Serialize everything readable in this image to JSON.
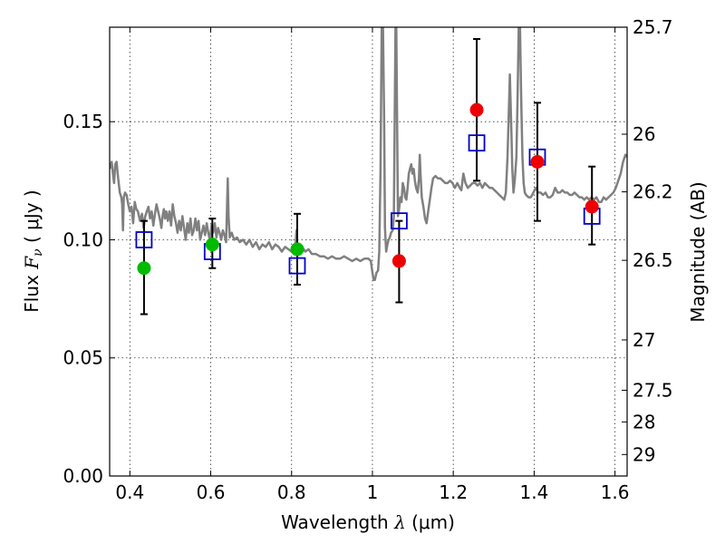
{
  "chart_data": {
    "type": "scatter",
    "xlabel_prefix": "Wavelength  ",
    "xlabel_math": "λ",
    "xlabel_unit": " (μm)",
    "ylabel_prefix": "Flux  ",
    "ylabel_math": "F",
    "ylabel_sub": "ν",
    "ylabel_unit": "  ( μJy )",
    "y2label": "Magnitude (AB)",
    "xlim": [
      0.35,
      1.63
    ],
    "ylim": [
      0.0,
      0.19
    ],
    "x_ticks": [
      0.4,
      0.6,
      0.8,
      1.0,
      1.2,
      1.4,
      1.6
    ],
    "x_tick_labels": [
      "0.4",
      "0.6",
      "0.8",
      "1",
      "1.2",
      "1.4",
      "1.6"
    ],
    "y_ticks": [
      0.0,
      0.05,
      0.1,
      0.15
    ],
    "y_tick_labels": [
      "0.00",
      "0.05",
      "0.10",
      "0.15"
    ],
    "y2_ticks": [
      {
        "label": "25.7",
        "flux": 0.19
      },
      {
        "label": "26",
        "flux": 0.1447
      },
      {
        "label": "26.2",
        "flux": 0.1203
      },
      {
        "label": "26.5",
        "flux": 0.0913
      },
      {
        "label": "27",
        "flux": 0.0576
      },
      {
        "label": "27.5",
        "flux": 0.0363
      },
      {
        "label": "28",
        "flux": 0.0229
      },
      {
        "label": "29",
        "flux": 0.0091
      }
    ],
    "model_spectrum": {
      "name": "model SED",
      "color": "#808080",
      "points": [
        [
          0.35,
          0.13
        ],
        [
          0.355,
          0.133
        ],
        [
          0.358,
          0.128
        ],
        [
          0.361,
          0.124
        ],
        [
          0.364,
          0.132
        ],
        [
          0.367,
          0.133
        ],
        [
          0.371,
          0.126
        ],
        [
          0.375,
          0.12
        ],
        [
          0.379,
          0.118
        ],
        [
          0.381,
          0.115
        ],
        [
          0.383,
          0.104
        ],
        [
          0.385,
          0.118
        ],
        [
          0.388,
          0.12
        ],
        [
          0.392,
          0.119
        ],
        [
          0.396,
          0.115
        ],
        [
          0.4,
          0.112
        ],
        [
          0.404,
          0.114
        ],
        [
          0.408,
          0.107
        ],
        [
          0.412,
          0.116
        ],
        [
          0.416,
          0.113
        ],
        [
          0.42,
          0.112
        ],
        [
          0.425,
          0.108
        ],
        [
          0.43,
          0.111
        ],
        [
          0.434,
          0.105
        ],
        [
          0.438,
          0.11
        ],
        [
          0.442,
          0.112
        ],
        [
          0.446,
          0.114
        ],
        [
          0.45,
          0.109
        ],
        [
          0.454,
          0.112
        ],
        [
          0.458,
          0.106
        ],
        [
          0.462,
          0.111
        ],
        [
          0.466,
          0.115
        ],
        [
          0.47,
          0.112
        ],
        [
          0.474,
          0.109
        ],
        [
          0.478,
          0.105
        ],
        [
          0.481,
          0.11
        ],
        [
          0.484,
          0.113
        ],
        [
          0.487,
          0.109
        ],
        [
          0.49,
          0.112
        ],
        [
          0.494,
          0.108
        ],
        [
          0.498,
          0.112
        ],
        [
          0.502,
          0.106
        ],
        [
          0.506,
          0.115
        ],
        [
          0.51,
          0.11
        ],
        [
          0.514,
          0.107
        ],
        [
          0.518,
          0.103
        ],
        [
          0.522,
          0.108
        ],
        [
          0.526,
          0.104
        ],
        [
          0.53,
          0.11
        ],
        [
          0.534,
          0.105
        ],
        [
          0.538,
          0.1
        ],
        [
          0.542,
          0.107
        ],
        [
          0.546,
          0.103
        ],
        [
          0.55,
          0.109
        ],
        [
          0.554,
          0.102
        ],
        [
          0.558,
          0.104
        ],
        [
          0.562,
          0.109
        ],
        [
          0.566,
          0.104
        ],
        [
          0.57,
          0.108
        ],
        [
          0.574,
          0.1
        ],
        [
          0.578,
          0.103
        ],
        [
          0.582,
          0.106
        ],
        [
          0.586,
          0.102
        ],
        [
          0.59,
          0.107
        ],
        [
          0.594,
          0.103
        ],
        [
          0.598,
          0.1
        ],
        [
          0.602,
          0.106
        ],
        [
          0.606,
          0.103
        ],
        [
          0.61,
          0.107
        ],
        [
          0.614,
          0.101
        ],
        [
          0.618,
          0.105
        ],
        [
          0.622,
          0.103
        ],
        [
          0.626,
          0.1
        ],
        [
          0.63,
          0.104
        ],
        [
          0.634,
          0.102
        ],
        [
          0.638,
          0.099
        ],
        [
          0.64,
          0.112
        ],
        [
          0.642,
          0.126
        ],
        [
          0.644,
          0.11
        ],
        [
          0.647,
          0.101
        ],
        [
          0.652,
          0.103
        ],
        [
          0.658,
          0.1
        ],
        [
          0.665,
          0.101
        ],
        [
          0.672,
          0.099
        ],
        [
          0.68,
          0.1
        ],
        [
          0.688,
          0.098
        ],
        [
          0.696,
          0.1
        ],
        [
          0.704,
          0.097
        ],
        [
          0.712,
          0.099
        ],
        [
          0.72,
          0.096
        ],
        [
          0.728,
          0.098
        ],
        [
          0.736,
          0.097
        ],
        [
          0.744,
          0.099
        ],
        [
          0.752,
          0.096
        ],
        [
          0.76,
          0.098
        ],
        [
          0.768,
          0.097
        ],
        [
          0.776,
          0.095
        ],
        [
          0.784,
          0.097
        ],
        [
          0.792,
          0.096
        ],
        [
          0.8,
          0.095
        ],
        [
          0.806,
          0.097
        ],
        [
          0.81,
          0.098
        ],
        [
          0.812,
          0.104
        ],
        [
          0.814,
          0.097
        ],
        [
          0.818,
          0.096
        ],
        [
          0.826,
          0.097
        ],
        [
          0.834,
          0.095
        ],
        [
          0.842,
          0.096
        ],
        [
          0.85,
          0.094
        ],
        [
          0.86,
          0.094
        ],
        [
          0.87,
          0.093
        ],
        [
          0.88,
          0.093
        ],
        [
          0.89,
          0.092
        ],
        [
          0.9,
          0.093
        ],
        [
          0.91,
          0.092
        ],
        [
          0.92,
          0.092
        ],
        [
          0.93,
          0.093
        ],
        [
          0.94,
          0.092
        ],
        [
          0.95,
          0.091
        ],
        [
          0.96,
          0.092
        ],
        [
          0.97,
          0.091
        ],
        [
          0.98,
          0.092
        ],
        [
          0.99,
          0.092
        ],
        [
          0.996,
          0.091
        ],
        [
          1.0,
          0.086
        ],
        [
          1.003,
          0.083
        ],
        [
          1.006,
          0.083
        ],
        [
          1.01,
          0.086
        ],
        [
          1.014,
          0.087
        ],
        [
          1.017,
          0.095
        ],
        [
          1.02,
          0.13
        ],
        [
          1.023,
          0.19
        ],
        [
          1.026,
          0.19
        ],
        [
          1.029,
          0.15
        ],
        [
          1.031,
          0.105
        ],
        [
          1.034,
          0.095
        ],
        [
          1.037,
          0.098
        ],
        [
          1.04,
          0.1
        ],
        [
          1.043,
          0.101
        ],
        [
          1.046,
          0.103
        ],
        [
          1.05,
          0.104
        ],
        [
          1.053,
          0.11
        ],
        [
          1.055,
          0.15
        ],
        [
          1.057,
          0.19
        ],
        [
          1.059,
          0.19
        ],
        [
          1.061,
          0.15
        ],
        [
          1.063,
          0.11
        ],
        [
          1.066,
          0.113
        ],
        [
          1.069,
          0.118
        ],
        [
          1.072,
          0.116
        ],
        [
          1.075,
          0.124
        ],
        [
          1.078,
          0.122
        ],
        [
          1.081,
          0.118
        ],
        [
          1.084,
          0.117
        ],
        [
          1.087,
          0.122
        ],
        [
          1.09,
          0.128
        ],
        [
          1.093,
          0.13
        ],
        [
          1.096,
          0.132
        ],
        [
          1.099,
          0.128
        ],
        [
          1.102,
          0.13
        ],
        [
          1.105,
          0.125
        ],
        [
          1.108,
          0.122
        ],
        [
          1.112,
          0.12
        ],
        [
          1.115,
          0.126
        ],
        [
          1.117,
          0.136
        ],
        [
          1.119,
          0.128
        ],
        [
          1.122,
          0.118
        ],
        [
          1.126,
          0.114
        ],
        [
          1.13,
          0.109
        ],
        [
          1.134,
          0.107
        ],
        [
          1.138,
          0.112
        ],
        [
          1.142,
          0.117
        ],
        [
          1.146,
          0.122
        ],
        [
          1.15,
          0.126
        ],
        [
          1.156,
          0.127
        ],
        [
          1.162,
          0.126
        ],
        [
          1.168,
          0.126
        ],
        [
          1.174,
          0.125
        ],
        [
          1.18,
          0.124
        ],
        [
          1.186,
          0.124
        ],
        [
          1.192,
          0.125
        ],
        [
          1.198,
          0.124
        ],
        [
          1.204,
          0.122
        ],
        [
          1.21,
          0.124
        ],
        [
          1.216,
          0.122
        ],
        [
          1.22,
          0.121
        ],
        [
          1.225,
          0.128
        ],
        [
          1.23,
          0.124
        ],
        [
          1.236,
          0.122
        ],
        [
          1.242,
          0.123
        ],
        [
          1.248,
          0.124
        ],
        [
          1.254,
          0.124
        ],
        [
          1.26,
          0.123
        ],
        [
          1.266,
          0.124
        ],
        [
          1.272,
          0.122
        ],
        [
          1.278,
          0.124
        ],
        [
          1.284,
          0.123
        ],
        [
          1.29,
          0.122
        ],
        [
          1.296,
          0.122
        ],
        [
          1.302,
          0.121
        ],
        [
          1.308,
          0.12
        ],
        [
          1.314,
          0.119
        ],
        [
          1.32,
          0.118
        ],
        [
          1.326,
          0.117
        ],
        [
          1.33,
          0.12
        ],
        [
          1.334,
          0.135
        ],
        [
          1.337,
          0.152
        ],
        [
          1.34,
          0.17
        ],
        [
          1.343,
          0.15
        ],
        [
          1.346,
          0.13
        ],
        [
          1.349,
          0.12
        ],
        [
          1.352,
          0.125
        ],
        [
          1.356,
          0.135
        ],
        [
          1.359,
          0.16
        ],
        [
          1.362,
          0.19
        ],
        [
          1.365,
          0.19
        ],
        [
          1.368,
          0.16
        ],
        [
          1.371,
          0.135
        ],
        [
          1.374,
          0.124
        ],
        [
          1.377,
          0.12
        ],
        [
          1.38,
          0.119
        ],
        [
          1.386,
          0.118
        ],
        [
          1.392,
          0.118
        ],
        [
          1.398,
          0.12
        ],
        [
          1.404,
          0.122
        ],
        [
          1.41,
          0.12
        ],
        [
          1.416,
          0.12
        ],
        [
          1.422,
          0.119
        ],
        [
          1.428,
          0.12
        ],
        [
          1.434,
          0.118
        ],
        [
          1.44,
          0.118
        ],
        [
          1.446,
          0.119
        ],
        [
          1.452,
          0.122
        ],
        [
          1.458,
          0.12
        ],
        [
          1.464,
          0.12
        ],
        [
          1.47,
          0.121
        ],
        [
          1.476,
          0.12
        ],
        [
          1.482,
          0.12
        ],
        [
          1.488,
          0.119
        ],
        [
          1.494,
          0.119
        ],
        [
          1.5,
          0.12
        ],
        [
          1.506,
          0.119
        ],
        [
          1.512,
          0.118
        ],
        [
          1.518,
          0.118
        ],
        [
          1.524,
          0.117
        ],
        [
          1.53,
          0.118
        ],
        [
          1.536,
          0.117
        ],
        [
          1.542,
          0.118
        ],
        [
          1.548,
          0.117
        ],
        [
          1.554,
          0.118
        ],
        [
          1.56,
          0.116
        ],
        [
          1.566,
          0.116
        ],
        [
          1.572,
          0.118
        ],
        [
          1.578,
          0.117
        ],
        [
          1.584,
          0.118
        ],
        [
          1.59,
          0.119
        ],
        [
          1.596,
          0.12
        ],
        [
          1.602,
          0.122
        ],
        [
          1.608,
          0.125
        ],
        [
          1.614,
          0.128
        ],
        [
          1.62,
          0.133
        ],
        [
          1.626,
          0.136
        ],
        [
          1.63,
          0.135
        ]
      ]
    },
    "series": [
      {
        "name": "green observed",
        "marker": "circle",
        "color": "#00bb00",
        "points": [
          {
            "x": 0.435,
            "y": 0.088,
            "err_lo": 0.0685,
            "err_hi": 0.108
          },
          {
            "x": 0.604,
            "y": 0.098,
            "err_lo": 0.088,
            "err_hi": 0.109
          },
          {
            "x": 0.814,
            "y": 0.096,
            "err_lo": 0.081,
            "err_hi": 0.111
          }
        ]
      },
      {
        "name": "red observed",
        "marker": "circle",
        "color": "#ee0000",
        "points": [
          {
            "x": 1.066,
            "y": 0.091,
            "err_lo": 0.0735,
            "err_hi": 0.108
          },
          {
            "x": 1.258,
            "y": 0.155,
            "err_lo": 0.125,
            "err_hi": 0.185
          },
          {
            "x": 1.408,
            "y": 0.133,
            "err_lo": 0.108,
            "err_hi": 0.158
          },
          {
            "x": 1.543,
            "y": 0.114,
            "err_lo": 0.098,
            "err_hi": 0.131
          }
        ]
      },
      {
        "name": "model photometry",
        "marker": "square-open",
        "color": "#0000cc",
        "points": [
          {
            "x": 0.435,
            "y": 0.1
          },
          {
            "x": 0.604,
            "y": 0.095
          },
          {
            "x": 0.814,
            "y": 0.089
          },
          {
            "x": 1.066,
            "y": 0.108
          },
          {
            "x": 1.258,
            "y": 0.141
          },
          {
            "x": 1.408,
            "y": 0.135
          },
          {
            "x": 1.543,
            "y": 0.11
          }
        ]
      }
    ],
    "grid": true
  }
}
